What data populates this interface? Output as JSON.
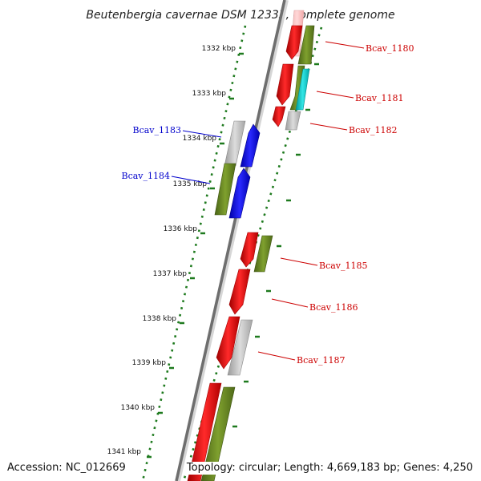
{
  "title": "Beutenbergia cavernae DSM 12333, complete genome",
  "footer": {
    "accession": "Accession: NC_012669",
    "summary": "Topology: circular; Length: 4,669,183 bp; Genes: 4,250"
  },
  "colors": {
    "backbone": "#6e6e6e",
    "tick": "#1e7a1e",
    "cds_red": "#ff0000",
    "cds_olive": "#6b8e23",
    "cds_gray": "#bdbdbd",
    "cds_blue": "#0000ff",
    "cds_cyan": "#00cccc",
    "label_right": "#cc0000",
    "label_left": "#0000cc"
  },
  "scale": {
    "unit": "kbp",
    "labels": [
      "1332 kbp",
      "1333 kbp",
      "1334 kbp",
      "1335 kbp",
      "1336 kbp",
      "1337 kbp",
      "1338 kbp",
      "1339 kbp",
      "1340 kbp",
      "1341 kbp"
    ]
  },
  "gene_labels": {
    "forward": [
      "Bcav_1180",
      "Bcav_1181",
      "Bcav_1182",
      "Bcav_1185",
      "Bcav_1186",
      "Bcav_1187"
    ],
    "reverse": [
      "Bcav_1183",
      "Bcav_1184"
    ]
  }
}
